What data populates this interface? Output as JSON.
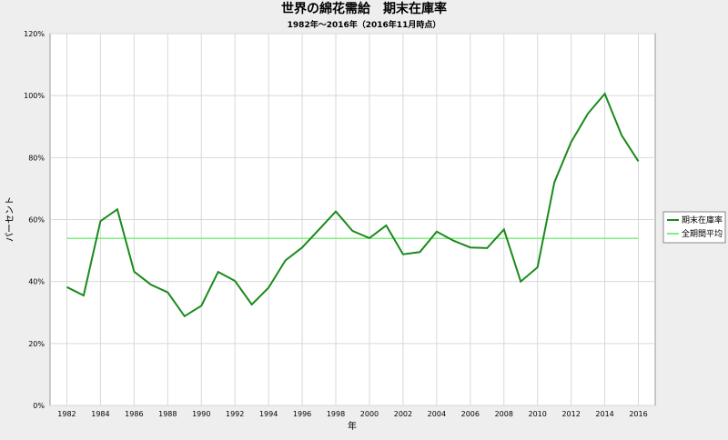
{
  "chart_data": {
    "type": "line",
    "title": "世界の綿花需給　期末在庫率",
    "subtitle": "1982年～2016年（2016年11月時点）",
    "xlabel": "年",
    "ylabel": "パーセント",
    "x": [
      1982,
      1983,
      1984,
      1985,
      1986,
      1987,
      1988,
      1989,
      1990,
      1991,
      1992,
      1993,
      1994,
      1995,
      1996,
      1997,
      1998,
      1999,
      2000,
      2001,
      2002,
      2003,
      2004,
      2005,
      2006,
      2007,
      2008,
      2009,
      2010,
      2011,
      2012,
      2013,
      2014,
      2015,
      2016
    ],
    "x_ticks": [
      "1982",
      "1984",
      "1986",
      "1988",
      "1990",
      "1992",
      "1994",
      "1996",
      "1998",
      "2000",
      "2002",
      "2004",
      "2006",
      "2008",
      "2010",
      "2012",
      "2014",
      "2016"
    ],
    "y_ticks": [
      "0%",
      "20%",
      "40%",
      "60%",
      "80%",
      "100%",
      "120%"
    ],
    "ylim": [
      0,
      120
    ],
    "grid": true,
    "legend_position": "right",
    "series": [
      {
        "name": "期末在庫率",
        "color": "#1a8a1a",
        "values": [
          38.2,
          35.5,
          59.5,
          63.3,
          43.2,
          39.0,
          36.5,
          28.8,
          32.2,
          43.1,
          40.2,
          32.6,
          38.0,
          46.8,
          51.0,
          56.8,
          62.6,
          56.3,
          54.0,
          58.1,
          48.8,
          49.5,
          56.1,
          53.2,
          51.0,
          50.8,
          56.8,
          40.0,
          44.6,
          72.0,
          85.0,
          94.2,
          100.6,
          87.2,
          78.8
        ]
      },
      {
        "name": "全期間平均",
        "color": "#7ff07f",
        "values": [
          53.9,
          53.9,
          53.9,
          53.9,
          53.9,
          53.9,
          53.9,
          53.9,
          53.9,
          53.9,
          53.9,
          53.9,
          53.9,
          53.9,
          53.9,
          53.9,
          53.9,
          53.9,
          53.9,
          53.9,
          53.9,
          53.9,
          53.9,
          53.9,
          53.9,
          53.9,
          53.9,
          53.9,
          53.9,
          53.9,
          53.9,
          53.9,
          53.9,
          53.9,
          53.9
        ]
      }
    ]
  }
}
